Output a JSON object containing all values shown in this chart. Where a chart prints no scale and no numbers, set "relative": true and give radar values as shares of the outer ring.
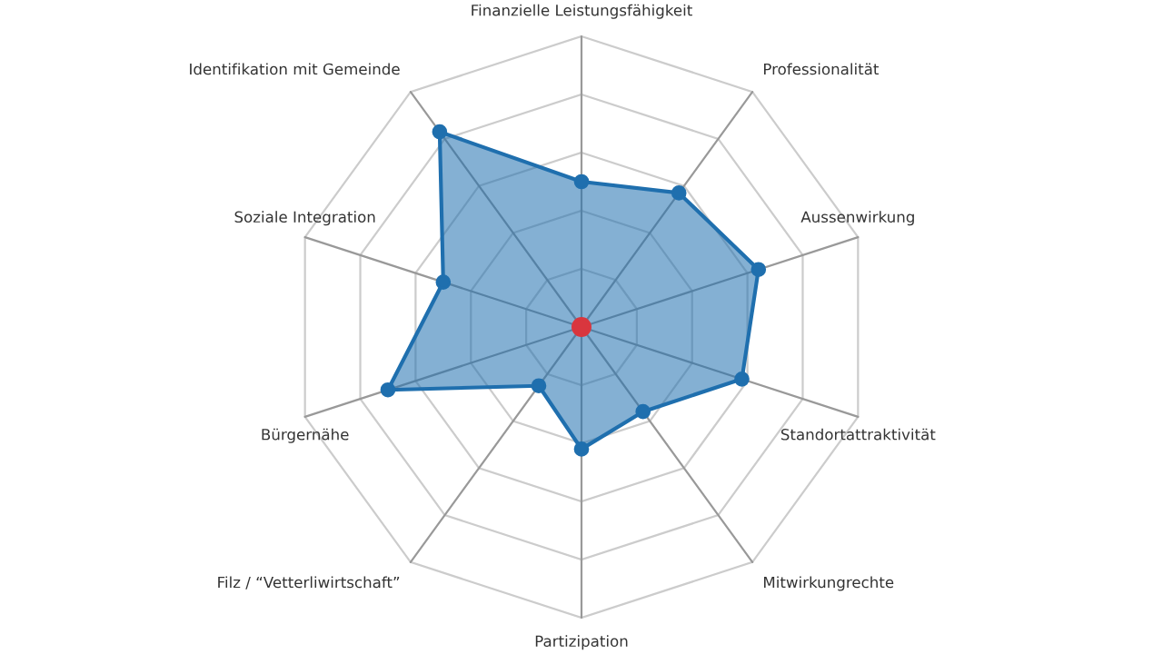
{
  "chart_data": {
    "type": "radar",
    "relative": true,
    "grid": true,
    "marker": "circle",
    "line_style": "solid",
    "categories": [
      "Finanzielle Leistungsfähigkeit",
      "Professionalität",
      "Aussenwirkung",
      "Standortattraktivität",
      "Mitwirkungrechte",
      "Partizipation",
      "Filz / “Vetterliwirtschaft”",
      "Bürgernähe",
      "Soziale Integration",
      "Identifikation mit Gemeinde"
    ],
    "series": [
      {
        "color": "#1f6fae",
        "values": [
          0.5,
          0.57,
          0.64,
          0.58,
          0.36,
          0.42,
          0.25,
          0.7,
          0.5,
          0.83
        ]
      }
    ]
  }
}
